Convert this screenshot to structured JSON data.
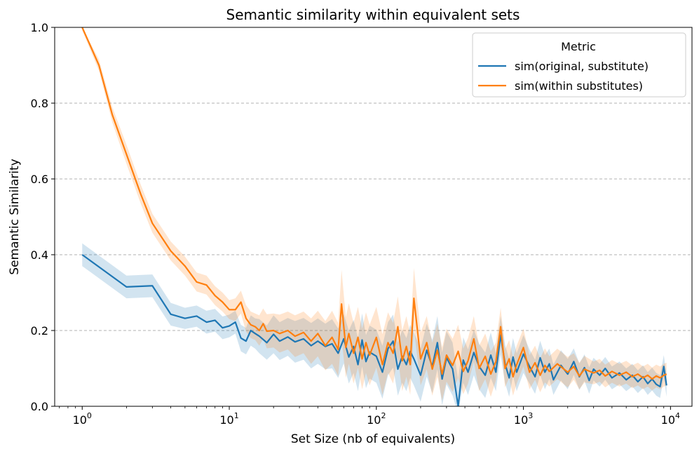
{
  "chart_data": {
    "type": "line",
    "title": "Semantic similarity within equivalent sets",
    "xlabel": "Set Size (nb of equivalents)",
    "ylabel": "Semantic Similarity",
    "x_scale": "log",
    "xlim": [
      0.65,
      14000
    ],
    "ylim": [
      0.0,
      1.0
    ],
    "x_ticks": [
      {
        "value": 1,
        "base": "10",
        "exp": "0"
      },
      {
        "value": 10,
        "base": "10",
        "exp": "1"
      },
      {
        "value": 100,
        "base": "10",
        "exp": "2"
      },
      {
        "value": 1000,
        "base": "10",
        "exp": "3"
      },
      {
        "value": 10000,
        "base": "10",
        "exp": "4"
      }
    ],
    "y_ticks": [
      {
        "value": 0.0,
        "label": "0.0"
      },
      {
        "value": 0.2,
        "label": "0.2"
      },
      {
        "value": 0.4,
        "label": "0.4"
      },
      {
        "value": 0.6,
        "label": "0.6"
      },
      {
        "value": 0.8,
        "label": "0.8"
      },
      {
        "value": 1.0,
        "label": "1.0"
      }
    ],
    "grid": "y-dashed",
    "legend": {
      "title": "Metric",
      "position": "top-right"
    },
    "series": [
      {
        "name": "sim(original, substitute)",
        "color": "#1f77b4",
        "band_color": "#1f77b4",
        "points": [
          [
            1,
            0.4,
            0.03
          ],
          [
            2,
            0.315,
            0.03
          ],
          [
            3,
            0.318,
            0.03
          ],
          [
            4,
            0.243,
            0.03
          ],
          [
            5,
            0.232,
            0.028
          ],
          [
            6,
            0.238,
            0.028
          ],
          [
            7,
            0.222,
            0.03
          ],
          [
            8,
            0.227,
            0.03
          ],
          [
            9,
            0.207,
            0.03
          ],
          [
            10,
            0.212,
            0.03
          ],
          [
            11,
            0.222,
            0.03
          ],
          [
            12,
            0.18,
            0.035
          ],
          [
            13,
            0.172,
            0.035
          ],
          [
            14,
            0.2,
            0.04
          ],
          [
            15,
            0.192,
            0.04
          ],
          [
            16,
            0.185,
            0.045
          ],
          [
            18,
            0.168,
            0.045
          ],
          [
            20,
            0.19,
            0.05
          ],
          [
            22,
            0.172,
            0.05
          ],
          [
            25,
            0.183,
            0.05
          ],
          [
            28,
            0.17,
            0.055
          ],
          [
            32,
            0.178,
            0.055
          ],
          [
            36,
            0.16,
            0.06
          ],
          [
            40,
            0.172,
            0.06
          ],
          [
            45,
            0.158,
            0.06
          ],
          [
            50,
            0.165,
            0.065
          ],
          [
            55,
            0.14,
            0.065
          ],
          [
            60,
            0.178,
            0.065
          ],
          [
            65,
            0.13,
            0.07
          ],
          [
            70,
            0.158,
            0.07
          ],
          [
            75,
            0.11,
            0.07
          ],
          [
            80,
            0.175,
            0.07
          ],
          [
            85,
            0.118,
            0.07
          ],
          [
            90,
            0.143,
            0.07
          ],
          [
            100,
            0.132,
            0.07
          ],
          [
            110,
            0.09,
            0.07
          ],
          [
            120,
            0.152,
            0.07
          ],
          [
            130,
            0.172,
            0.07
          ],
          [
            140,
            0.098,
            0.07
          ],
          [
            150,
            0.132,
            0.07
          ],
          [
            160,
            0.11,
            0.07
          ],
          [
            170,
            0.145,
            0.07
          ],
          [
            180,
            0.125,
            0.07
          ],
          [
            200,
            0.082,
            0.07
          ],
          [
            220,
            0.148,
            0.07
          ],
          [
            240,
            0.105,
            0.07
          ],
          [
            260,
            0.168,
            0.07
          ],
          [
            280,
            0.072,
            0.07
          ],
          [
            300,
            0.128,
            0.07
          ],
          [
            330,
            0.098,
            0.07
          ],
          [
            360,
            0.0,
            0.07
          ],
          [
            390,
            0.122,
            0.06
          ],
          [
            420,
            0.09,
            0.06
          ],
          [
            460,
            0.142,
            0.06
          ],
          [
            500,
            0.105,
            0.06
          ],
          [
            550,
            0.082,
            0.06
          ],
          [
            600,
            0.135,
            0.06
          ],
          [
            650,
            0.09,
            0.05
          ],
          [
            700,
            0.188,
            0.05
          ],
          [
            750,
            0.112,
            0.05
          ],
          [
            800,
            0.075,
            0.05
          ],
          [
            850,
            0.13,
            0.05
          ],
          [
            900,
            0.09,
            0.05
          ],
          [
            1000,
            0.138,
            0.05
          ],
          [
            1100,
            0.105,
            0.045
          ],
          [
            1200,
            0.078,
            0.045
          ],
          [
            1300,
            0.128,
            0.045
          ],
          [
            1400,
            0.09,
            0.045
          ],
          [
            1500,
            0.112,
            0.04
          ],
          [
            1600,
            0.07,
            0.04
          ],
          [
            1800,
            0.108,
            0.04
          ],
          [
            2000,
            0.085,
            0.04
          ],
          [
            2200,
            0.118,
            0.035
          ],
          [
            2400,
            0.078,
            0.035
          ],
          [
            2600,
            0.102,
            0.035
          ],
          [
            2800,
            0.068,
            0.035
          ],
          [
            3000,
            0.098,
            0.03
          ],
          [
            3300,
            0.082,
            0.03
          ],
          [
            3600,
            0.1,
            0.03
          ],
          [
            4000,
            0.075,
            0.03
          ],
          [
            4500,
            0.088,
            0.03
          ],
          [
            5000,
            0.07,
            0.03
          ],
          [
            5500,
            0.082,
            0.03
          ],
          [
            6000,
            0.065,
            0.03
          ],
          [
            6500,
            0.078,
            0.03
          ],
          [
            7000,
            0.06,
            0.03
          ],
          [
            7500,
            0.072,
            0.03
          ],
          [
            8000,
            0.058,
            0.03
          ],
          [
            8500,
            0.052,
            0.03
          ],
          [
            9000,
            0.105,
            0.03
          ],
          [
            9400,
            0.055,
            0.03
          ]
        ]
      },
      {
        "name": "sim(within substitutes)",
        "color": "#ff7f0e",
        "band_color": "#ff7f0e",
        "points": [
          [
            1,
            1.0,
            0.008
          ],
          [
            1.3,
            0.9,
            0.015
          ],
          [
            1.6,
            0.77,
            0.02
          ],
          [
            2,
            0.665,
            0.025
          ],
          [
            2.5,
            0.56,
            0.025
          ],
          [
            3,
            0.483,
            0.025
          ],
          [
            4,
            0.41,
            0.025
          ],
          [
            5,
            0.37,
            0.025
          ],
          [
            6,
            0.328,
            0.025
          ],
          [
            7,
            0.32,
            0.025
          ],
          [
            8,
            0.292,
            0.025
          ],
          [
            9,
            0.275,
            0.025
          ],
          [
            10,
            0.255,
            0.025
          ],
          [
            11,
            0.255,
            0.03
          ],
          [
            12,
            0.275,
            0.03
          ],
          [
            13,
            0.232,
            0.035
          ],
          [
            14,
            0.215,
            0.035
          ],
          [
            15,
            0.21,
            0.035
          ],
          [
            16,
            0.2,
            0.04
          ],
          [
            17,
            0.218,
            0.04
          ],
          [
            18,
            0.198,
            0.045
          ],
          [
            20,
            0.2,
            0.045
          ],
          [
            22,
            0.192,
            0.05
          ],
          [
            25,
            0.2,
            0.05
          ],
          [
            28,
            0.185,
            0.055
          ],
          [
            32,
            0.195,
            0.055
          ],
          [
            36,
            0.172,
            0.06
          ],
          [
            40,
            0.192,
            0.06
          ],
          [
            45,
            0.16,
            0.065
          ],
          [
            50,
            0.182,
            0.07
          ],
          [
            55,
            0.15,
            0.07
          ],
          [
            58,
            0.27,
            0.09
          ],
          [
            62,
            0.155,
            0.08
          ],
          [
            65,
            0.192,
            0.08
          ],
          [
            70,
            0.14,
            0.08
          ],
          [
            75,
            0.182,
            0.08
          ],
          [
            80,
            0.125,
            0.08
          ],
          [
            85,
            0.168,
            0.08
          ],
          [
            90,
            0.135,
            0.08
          ],
          [
            100,
            0.182,
            0.08
          ],
          [
            110,
            0.11,
            0.08
          ],
          [
            120,
            0.168,
            0.08
          ],
          [
            130,
            0.14,
            0.08
          ],
          [
            140,
            0.21,
            0.08
          ],
          [
            150,
            0.12,
            0.08
          ],
          [
            160,
            0.158,
            0.08
          ],
          [
            170,
            0.11,
            0.08
          ],
          [
            180,
            0.285,
            0.08
          ],
          [
            200,
            0.125,
            0.07
          ],
          [
            220,
            0.168,
            0.07
          ],
          [
            240,
            0.098,
            0.07
          ],
          [
            260,
            0.148,
            0.07
          ],
          [
            280,
            0.085,
            0.07
          ],
          [
            300,
            0.135,
            0.07
          ],
          [
            330,
            0.108,
            0.07
          ],
          [
            360,
            0.145,
            0.07
          ],
          [
            390,
            0.092,
            0.06
          ],
          [
            420,
            0.12,
            0.06
          ],
          [
            460,
            0.178,
            0.06
          ],
          [
            500,
            0.1,
            0.06
          ],
          [
            550,
            0.132,
            0.06
          ],
          [
            600,
            0.085,
            0.06
          ],
          [
            650,
            0.118,
            0.05
          ],
          [
            700,
            0.21,
            0.05
          ],
          [
            750,
            0.1,
            0.05
          ],
          [
            800,
            0.125,
            0.05
          ],
          [
            850,
            0.078,
            0.05
          ],
          [
            900,
            0.11,
            0.05
          ],
          [
            1000,
            0.155,
            0.05
          ],
          [
            1100,
            0.09,
            0.045
          ],
          [
            1200,
            0.115,
            0.045
          ],
          [
            1300,
            0.082,
            0.045
          ],
          [
            1400,
            0.108,
            0.045
          ],
          [
            1500,
            0.092,
            0.04
          ],
          [
            1700,
            0.112,
            0.04
          ],
          [
            2000,
            0.09,
            0.04
          ],
          [
            2200,
            0.105,
            0.035
          ],
          [
            2400,
            0.08,
            0.035
          ],
          [
            2600,
            0.098,
            0.035
          ],
          [
            3000,
            0.088,
            0.03
          ],
          [
            3300,
            0.095,
            0.03
          ],
          [
            3600,
            0.08,
            0.03
          ],
          [
            4000,
            0.092,
            0.03
          ],
          [
            4500,
            0.082,
            0.03
          ],
          [
            5000,
            0.09,
            0.03
          ],
          [
            5500,
            0.078,
            0.03
          ],
          [
            6000,
            0.085,
            0.03
          ],
          [
            6500,
            0.075,
            0.03
          ],
          [
            7000,
            0.082,
            0.03
          ],
          [
            7500,
            0.072,
            0.03
          ],
          [
            8000,
            0.08,
            0.03
          ],
          [
            8500,
            0.075,
            0.03
          ],
          [
            9000,
            0.082,
            0.03
          ],
          [
            9400,
            0.085,
            0.03
          ]
        ]
      }
    ]
  }
}
